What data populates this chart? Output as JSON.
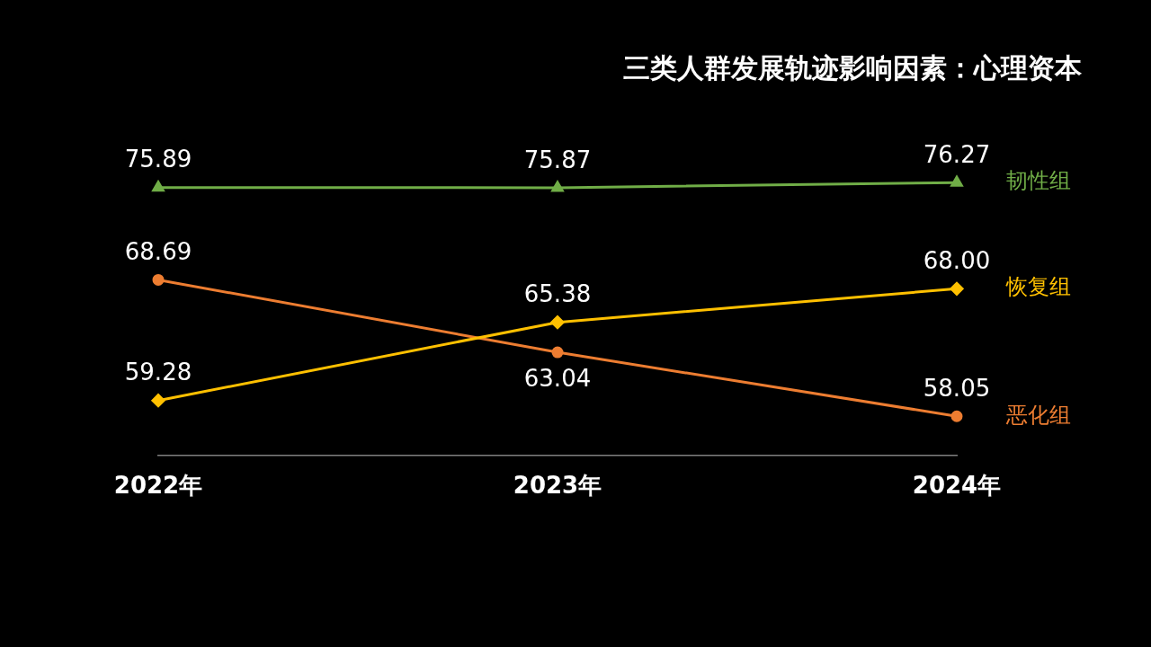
{
  "chart_data": {
    "type": "line",
    "title": "三类人群发展轨迹影响因素：心理资本",
    "categories": [
      "2022年",
      "2023年",
      "2024年"
    ],
    "series": [
      {
        "name": "韧性组",
        "color": "#70ad47",
        "marker": "triangle",
        "values": [
          75.89,
          75.87,
          76.27
        ],
        "value_labels": [
          "75.89",
          "75.87",
          "76.27"
        ]
      },
      {
        "name": "恢复组",
        "color": "#ffc000",
        "marker": "diamond",
        "values": [
          59.28,
          65.38,
          68.0
        ],
        "value_labels": [
          "59.28",
          "65.38",
          "68.00"
        ]
      },
      {
        "name": "恶化组",
        "color": "#ed7d31",
        "marker": "circle",
        "values": [
          68.69,
          63.04,
          58.05
        ],
        "value_labels": [
          "68.69",
          "63.04",
          "58.05"
        ]
      }
    ],
    "grid": false,
    "legend": false
  }
}
